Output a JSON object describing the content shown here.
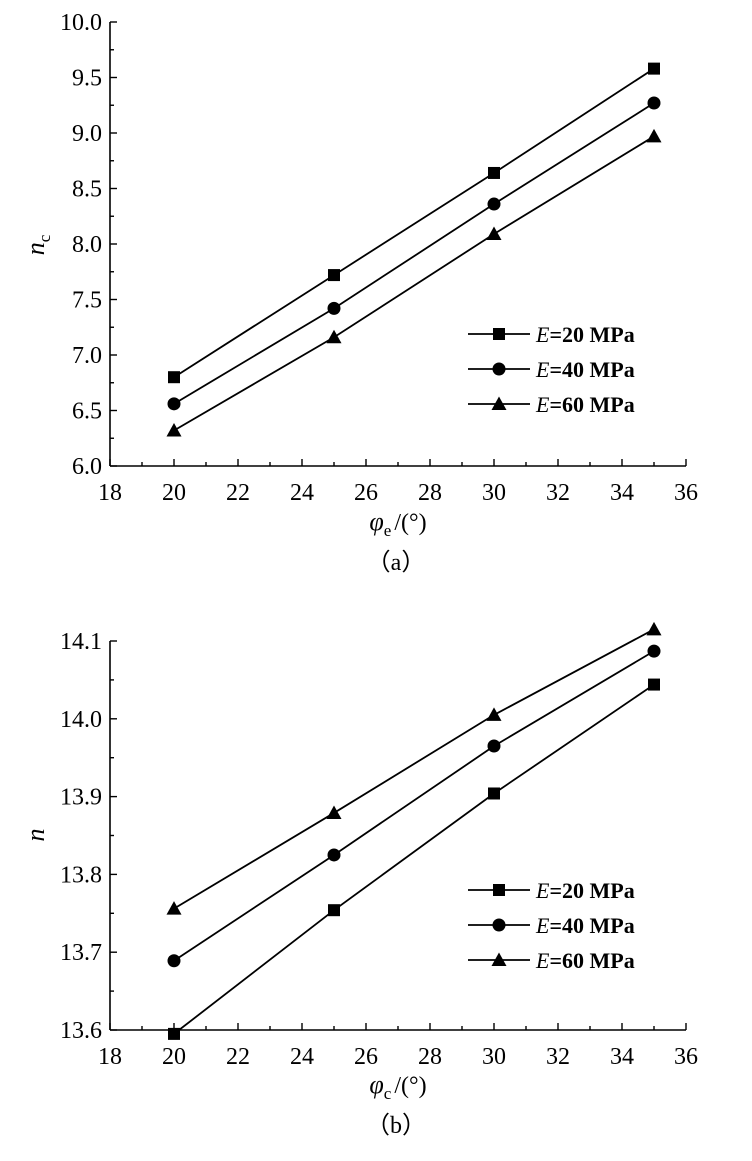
{
  "chart_data": [
    {
      "type": "line",
      "panel": "a",
      "caption": "（a）",
      "xlabel": {
        "symbol": "φ",
        "subscript": "e",
        "unit": "/(°)"
      },
      "ylabel": {
        "symbol": "n",
        "subscript": "c"
      },
      "xlim": [
        18,
        36
      ],
      "ylim": [
        6.0,
        10.0
      ],
      "xticks": [
        18,
        20,
        22,
        24,
        26,
        28,
        30,
        32,
        34,
        36
      ],
      "yticks": [
        6.0,
        6.5,
        7.0,
        7.5,
        8.0,
        8.5,
        9.0,
        9.5,
        10.0
      ],
      "x": [
        20,
        25,
        30,
        35
      ],
      "series": [
        {
          "name": "E=20 MPa",
          "legend_e": "E",
          "legend_rest": "=20 MPa",
          "marker": "square",
          "values": [
            6.8,
            7.72,
            8.64,
            9.58
          ]
        },
        {
          "name": "E=40 MPa",
          "legend_e": "E",
          "legend_rest": "=40 MPa",
          "marker": "circle",
          "values": [
            6.56,
            7.42,
            8.36,
            9.27
          ]
        },
        {
          "name": "E=60 MPa",
          "legend_e": "E",
          "legend_rest": "=60 MPa",
          "marker": "triangle",
          "values": [
            6.32,
            7.16,
            8.09,
            8.97
          ]
        }
      ],
      "legend": "center-right",
      "grid": false
    },
    {
      "type": "line",
      "panel": "b",
      "caption": "（b）",
      "xlabel": {
        "symbol": "φ",
        "subscript": "c",
        "unit": "/(°)"
      },
      "ylabel": {
        "symbol": "n",
        "subscript": ""
      },
      "xlim": [
        18,
        36
      ],
      "ylim": [
        13.6,
        14.1
      ],
      "xticks": [
        18,
        20,
        22,
        24,
        26,
        28,
        30,
        32,
        34,
        36
      ],
      "yticks": [
        13.6,
        13.7,
        13.8,
        13.9,
        14.0,
        14.1
      ],
      "x": [
        20,
        25,
        30,
        35
      ],
      "series": [
        {
          "name": "E=20 MPa",
          "legend_e": "E",
          "legend_rest": "=20 MPa",
          "marker": "square",
          "values": [
            13.595,
            13.754,
            13.904,
            14.044
          ]
        },
        {
          "name": "E=40 MPa",
          "legend_e": "E",
          "legend_rest": "=40 MPa",
          "marker": "circle",
          "values": [
            13.689,
            13.825,
            13.965,
            14.087
          ]
        },
        {
          "name": "E=60 MPa",
          "legend_e": "E",
          "legend_rest": "=60 MPa",
          "marker": "triangle",
          "values": [
            13.756,
            13.879,
            14.005,
            14.115
          ]
        }
      ],
      "legend": "lower-right",
      "grid": false
    }
  ]
}
